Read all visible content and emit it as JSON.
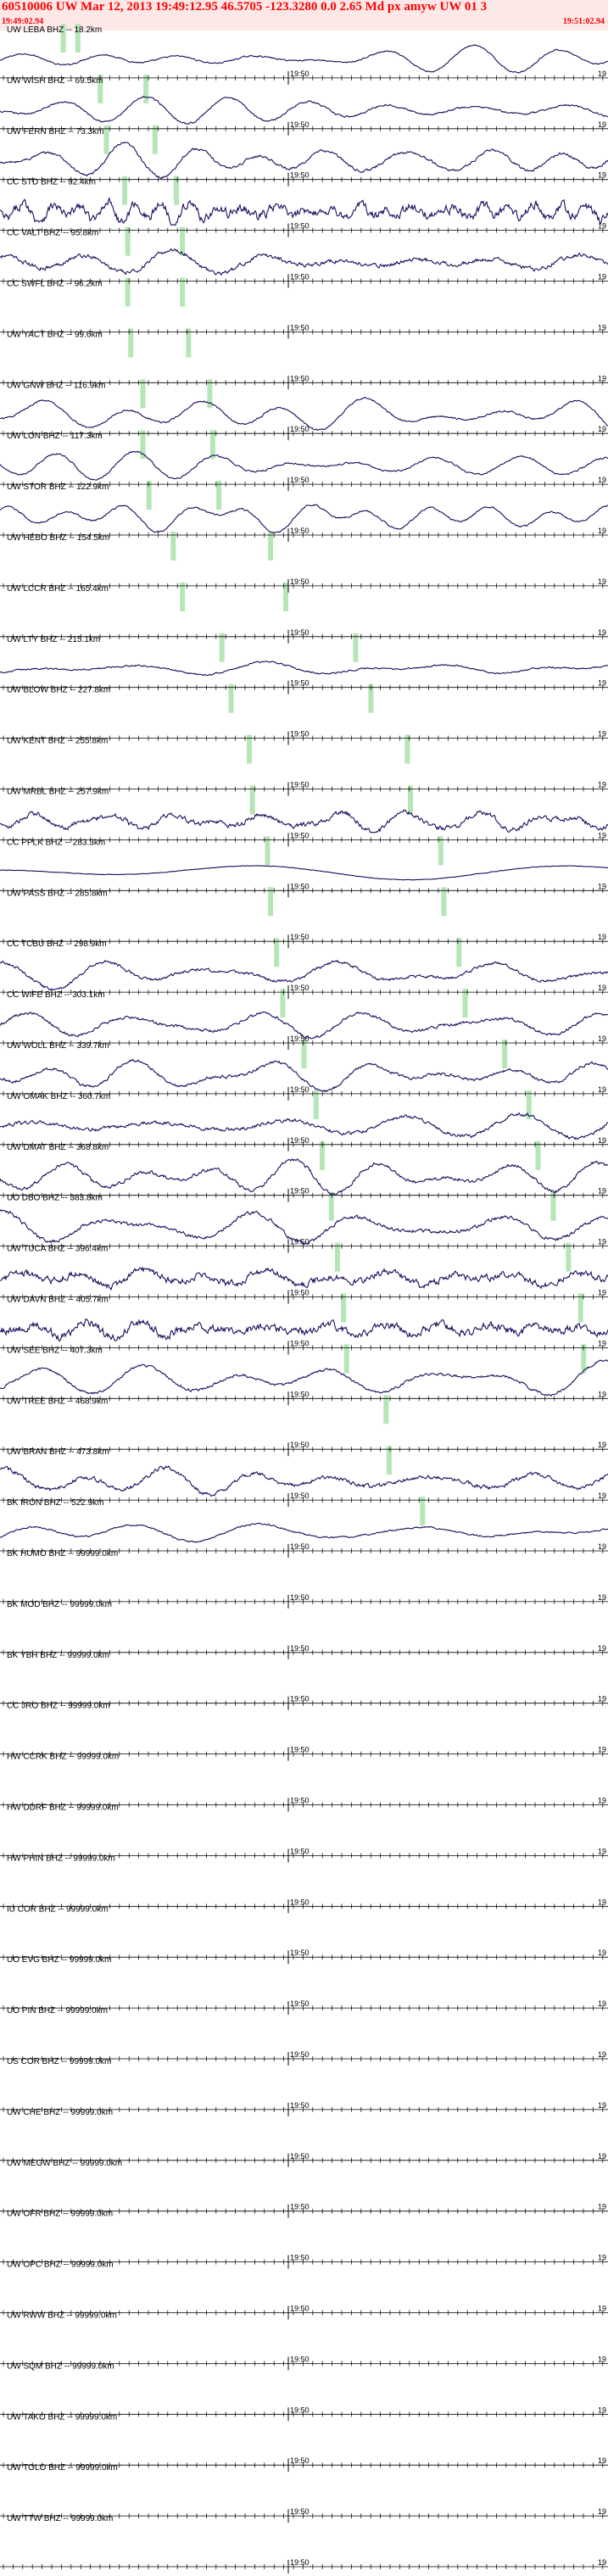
{
  "header": {
    "title": "60510006 UW Mar 12, 2013 19:49:12.95   46.5705 -123.3280  0.0 2.65 Md px amyw UW 01   3",
    "start_time": "19:49:02.94",
    "end_time": "19:51:02.94"
  },
  "colors": {
    "trace": "#1a0d5c",
    "pick": "#b5e6b5",
    "axis": "#000000",
    "header_bg": "#fde8e8",
    "header_text": "#ff0000"
  },
  "chart_data": {
    "type": "line",
    "title": "60510006 UW Mar 12, 2013 19:49:12.95   46.5705 -123.3280  0.0 2.65 Md px amyw UW 01   3",
    "time_range": [
      "19:49:02.94",
      "19:51:02.94"
    ],
    "tick_label": "19:50",
    "edge_label": "19",
    "series": [
      {
        "name": "UW LEBA BHZ -- 18.2km",
        "has_data": true,
        "amp": 0.7,
        "freq": 0.06,
        "noise": 0.1,
        "picks": [
          0.104,
          0.128
        ]
      },
      {
        "name": "UW WISH BHZ -- 69.5km",
        "has_data": true,
        "amp": 0.9,
        "freq": 0.05,
        "noise": 0.1,
        "picks": [
          0.165,
          0.24
        ]
      },
      {
        "name": "UW FERN BHZ -- 73.3km",
        "has_data": true,
        "amp": 0.9,
        "freq": 0.06,
        "noise": 0.15,
        "picks": [
          0.175,
          0.255
        ]
      },
      {
        "name": "CC STD BHZ -- 92.4km",
        "has_data": true,
        "amp": 0.6,
        "freq": 0.15,
        "noise": 0.8,
        "picks": [
          0.205,
          0.29
        ]
      },
      {
        "name": "CC VALT BHZ -- 95.8km",
        "has_data": true,
        "amp": 0.6,
        "freq": 0.05,
        "noise": 0.35,
        "picks": [
          0.21,
          0.3
        ]
      },
      {
        "name": "CC SWFL BHZ -- 96.2km",
        "has_data": false,
        "picks": [
          0.21,
          0.3
        ]
      },
      {
        "name": "UW YACT BHZ -- 99.6km",
        "has_data": false,
        "picks": [
          0.215,
          0.31
        ]
      },
      {
        "name": "UW GNW BHZ -- 116.9km",
        "has_data": true,
        "amp": 0.9,
        "freq": 0.05,
        "noise": 0.1,
        "picks": [
          0.235,
          0.345
        ]
      },
      {
        "name": "UW LON BHZ -- 117.3km",
        "has_data": true,
        "amp": 0.9,
        "freq": 0.05,
        "noise": 0.1,
        "picks": [
          0.235,
          0.35
        ]
      },
      {
        "name": "UW STOR BHZ -- 122.9km",
        "has_data": true,
        "amp": 0.9,
        "freq": 0.06,
        "noise": 0.1,
        "picks": [
          0.245,
          0.36
        ]
      },
      {
        "name": "UW HEBO BHZ -- 154.5km",
        "has_data": false,
        "picks": [
          0.285,
          0.445
        ]
      },
      {
        "name": "UW LCCR BHZ -- 165.4km",
        "has_data": false,
        "picks": [
          0.3,
          0.47
        ]
      },
      {
        "name": "UW LTY BHZ -- 215.1km",
        "has_data": true,
        "amp": 0.4,
        "freq": 0.05,
        "noise": 0.2,
        "picks": [
          0.365,
          0.585
        ]
      },
      {
        "name": "UW BLOW BHZ -- 227.8km",
        "has_data": false,
        "picks": [
          0.38,
          0.61
        ]
      },
      {
        "name": "UW KENT BHZ -- 255.8km",
        "has_data": false,
        "picks": [
          0.41,
          0.67
        ]
      },
      {
        "name": "UW MRBL BHZ -- 257.9km",
        "has_data": true,
        "amp": 0.5,
        "freq": 0.09,
        "noise": 0.5,
        "picks": [
          0.415,
          0.675
        ]
      },
      {
        "name": "CC PPLK BHZ -- 283.3km",
        "has_data": true,
        "amp": 0.5,
        "freq": 0.015,
        "noise": 0.05,
        "picks": [
          0.44,
          0.725
        ]
      },
      {
        "name": "UW PASS BHZ -- 285.8km",
        "has_data": false,
        "picks": [
          0.445,
          0.73
        ]
      },
      {
        "name": "CC TCBU BHZ -- 298.9km",
        "has_data": true,
        "amp": 0.8,
        "freq": 0.05,
        "noise": 0.2,
        "picks": [
          0.455,
          0.755
        ]
      },
      {
        "name": "CC WIFE BHZ -- 303.1km",
        "has_data": true,
        "amp": 0.8,
        "freq": 0.05,
        "noise": 0.2,
        "picks": [
          0.465,
          0.765
        ]
      },
      {
        "name": "UW WOLL BHZ -- 339.7km",
        "has_data": true,
        "amp": 0.8,
        "freq": 0.05,
        "noise": 0.2,
        "picks": [
          0.5,
          0.83
        ]
      },
      {
        "name": "UW OMAK BHZ -- 360.7km",
        "has_data": true,
        "amp": 0.9,
        "freq": 0.05,
        "noise": 0.2,
        "picks": [
          0.52,
          0.87
        ]
      },
      {
        "name": "UW DMAT BHZ -- 368.8km",
        "has_data": true,
        "amp": 0.9,
        "freq": 0.05,
        "noise": 0.2,
        "picks": [
          0.53,
          0.885
        ]
      },
      {
        "name": "UO DBO BHZ -- 383.8km",
        "has_data": true,
        "amp": 0.9,
        "freq": 0.06,
        "noise": 0.2,
        "picks": [
          0.545,
          0.91
        ]
      },
      {
        "name": "UW TUCA BHZ -- 396.4km",
        "has_data": true,
        "amp": 0.6,
        "freq": 0.08,
        "noise": 0.6,
        "picks": [
          0.555,
          0.935
        ]
      },
      {
        "name": "UW DAVN BHZ -- 405.7km",
        "has_data": true,
        "amp": 0.6,
        "freq": 0.08,
        "noise": 0.7,
        "picks": [
          0.565,
          0.955
        ]
      },
      {
        "name": "UW SEE BHZ -- 407.3km",
        "has_data": true,
        "amp": 0.9,
        "freq": 0.05,
        "noise": 0.15,
        "picks": [
          0.57,
          0.96
        ]
      },
      {
        "name": "UW TREE BHZ -- 468.9km",
        "has_data": false,
        "picks": [
          0.635
        ]
      },
      {
        "name": "UW BRAN BHZ -- 473.8km",
        "has_data": true,
        "amp": 0.7,
        "freq": 0.05,
        "noise": 0.3,
        "picks": [
          0.64
        ]
      },
      {
        "name": "BK IRON BHZ -- 522.9km",
        "has_data": true,
        "amp": 0.8,
        "freq": 0.04,
        "noise": 0.1,
        "picks": [
          0.695
        ]
      },
      {
        "name": "BK HUMO BHZ -- 99999.0km",
        "has_data": false,
        "picks": []
      },
      {
        "name": "BK MOD BHZ -- 99999.0km",
        "has_data": false,
        "picks": []
      },
      {
        "name": "BK YBH BHZ -- 99999.0km",
        "has_data": false,
        "picks": []
      },
      {
        "name": "CC JRO BHZ -- 99999.0km",
        "has_data": false,
        "picks": []
      },
      {
        "name": "HW CCRK BHZ -- 99999.0km",
        "has_data": false,
        "picks": []
      },
      {
        "name": "HW DDRF BHZ -- 99999.0km",
        "has_data": false,
        "picks": []
      },
      {
        "name": "HW PHIN BHZ -- 99999.0km",
        "has_data": false,
        "picks": []
      },
      {
        "name": "IU COR BHZ -- 99999.0km",
        "has_data": false,
        "picks": []
      },
      {
        "name": "UO EVG BHZ -- 99999.0km",
        "has_data": false,
        "picks": []
      },
      {
        "name": "UO PIN BHZ -- 99999.0km",
        "has_data": false,
        "picks": []
      },
      {
        "name": "US COR BHZ -- 99999.0km",
        "has_data": false,
        "picks": []
      },
      {
        "name": "UW CHE BHZ -- 99999.0km",
        "has_data": false,
        "picks": []
      },
      {
        "name": "UW MEGW BHZ -- 99999.0km",
        "has_data": false,
        "picks": []
      },
      {
        "name": "UW OFR BHZ -- 99999.0km",
        "has_data": false,
        "picks": []
      },
      {
        "name": "UW OPC BHZ -- 99999.0km",
        "has_data": false,
        "picks": []
      },
      {
        "name": "UW RWW BHZ -- 99999.0km",
        "has_data": false,
        "picks": []
      },
      {
        "name": "UW SQM BHZ -- 99999.0km",
        "has_data": false,
        "picks": []
      },
      {
        "name": "UW TAKO BHZ -- 99999.0km",
        "has_data": false,
        "picks": []
      },
      {
        "name": "UW TOLO BHZ -- 99999.0km",
        "has_data": false,
        "picks": []
      },
      {
        "name": "UW TTW BHZ -- 99999.0km",
        "has_data": false,
        "picks": []
      }
    ]
  }
}
